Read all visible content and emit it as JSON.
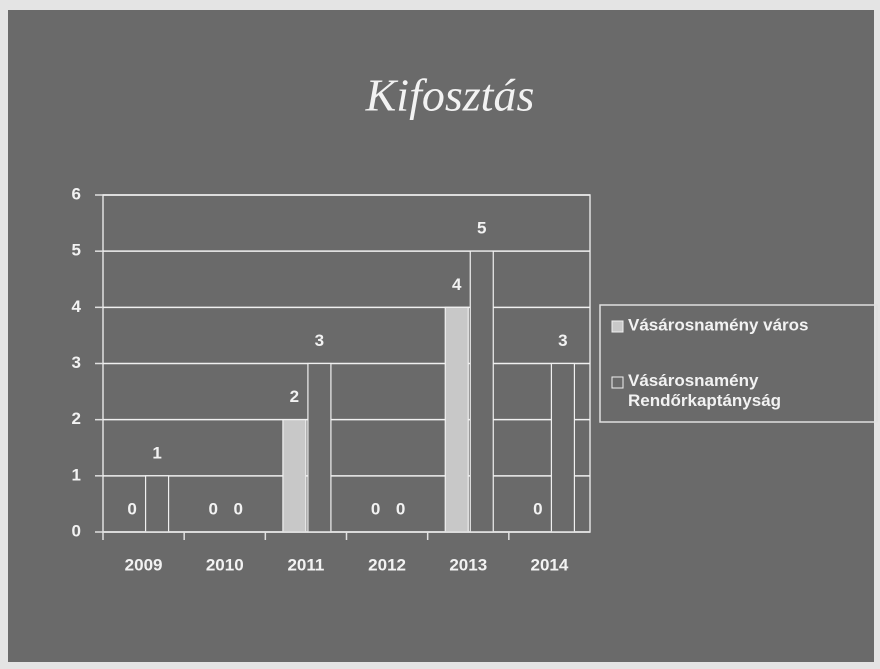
{
  "chart_data": {
    "type": "bar",
    "title": "Kifosztás",
    "categories": [
      "2009",
      "2010",
      "2011",
      "2012",
      "2013",
      "2014"
    ],
    "series": [
      {
        "name": "Vásárosnamény város",
        "color": "#c8c8c8",
        "values": [
          0,
          0,
          2,
          0,
          4,
          0
        ]
      },
      {
        "name": "Vásárosnamény Rendőrkaptányság",
        "color": "#6a6a6a",
        "values": [
          1,
          0,
          3,
          0,
          5,
          3
        ]
      }
    ],
    "ylim": [
      0,
      6
    ],
    "yticks": [
      0,
      1,
      2,
      3,
      4,
      5,
      6
    ],
    "grid": true,
    "legend": "right"
  }
}
